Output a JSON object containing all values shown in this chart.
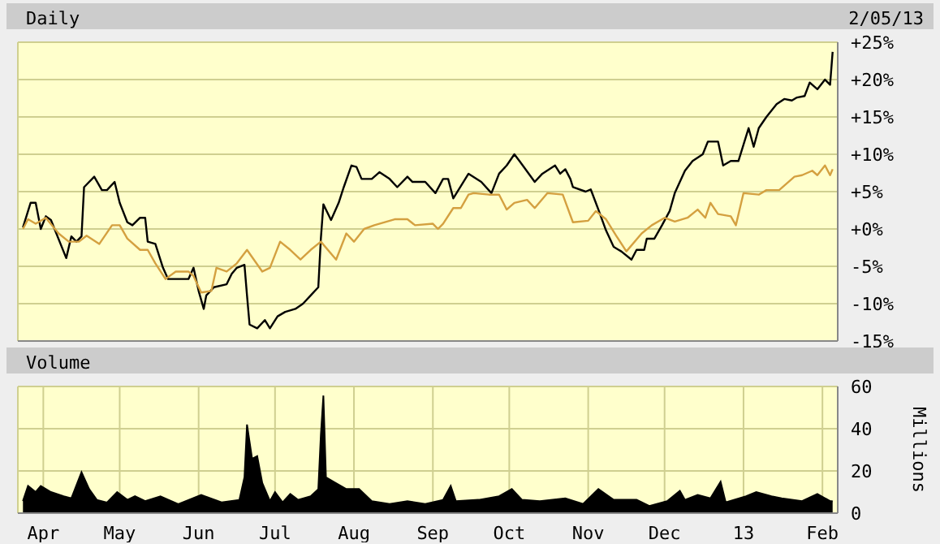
{
  "chart_data": [
    {
      "type": "line",
      "title": "Daily",
      "subtitle": "2/05/13",
      "xlim": [
        "2012-03-22",
        "2013-02-07"
      ],
      "xticks": [
        {
          "value": "2012-04-01",
          "label": null
        },
        {
          "value": "2012-05-01",
          "label": null
        },
        {
          "value": "2012-06-01",
          "label": null
        },
        {
          "value": "2012-07-01",
          "label": null
        },
        {
          "value": "2012-08-01",
          "label": null
        },
        {
          "value": "2012-09-01",
          "label": null
        },
        {
          "value": "2012-10-01",
          "label": null
        },
        {
          "value": "2012-11-01",
          "label": null
        },
        {
          "value": "2012-12-01",
          "label": null
        },
        {
          "value": "2013-01-01",
          "label": null
        },
        {
          "value": "2013-02-01",
          "label": null
        }
      ],
      "ylim": [
        -15,
        25
      ],
      "yticks": [
        {
          "value": -15,
          "label": "-15%"
        },
        {
          "value": -10,
          "label": "-10%"
        },
        {
          "value": -5,
          "label": "-5%"
        },
        {
          "value": 0,
          "label": "+0%"
        },
        {
          "value": 5,
          "label": "+5%"
        },
        {
          "value": 10,
          "label": "+10%"
        },
        {
          "value": 15,
          "label": "+15%"
        },
        {
          "value": 20,
          "label": "+20%"
        },
        {
          "value": 25,
          "label": "+25%"
        }
      ],
      "grid": true,
      "legend": false,
      "tick_labels": "y",
      "series": [
        {
          "color": "#000000",
          "x": [
            "2012-03-24",
            "2012-03-27",
            "2012-03-29",
            "2012-03-31",
            "2012-04-02",
            "2012-04-04",
            "2012-04-10",
            "2012-04-12",
            "2012-04-14",
            "2012-04-16",
            "2012-04-17",
            "2012-04-21",
            "2012-04-24",
            "2012-04-26",
            "2012-04-29",
            "2012-05-01",
            "2012-05-04",
            "2012-05-06",
            "2012-05-09",
            "2012-05-11",
            "2012-05-12",
            "2012-05-15",
            "2012-05-18",
            "2012-05-20",
            "2012-05-28",
            "2012-05-30",
            "2012-06-01",
            "2012-06-03",
            "2012-06-04",
            "2012-06-07",
            "2012-06-12",
            "2012-06-14",
            "2012-06-16",
            "2012-06-19",
            "2012-06-20",
            "2012-06-21",
            "2012-06-24",
            "2012-06-27",
            "2012-06-29",
            "2012-07-02",
            "2012-07-05",
            "2012-07-09",
            "2012-07-12",
            "2012-07-15",
            "2012-07-18",
            "2012-07-19",
            "2012-07-20",
            "2012-07-23",
            "2012-07-26",
            "2012-07-28",
            "2012-07-31",
            "2012-08-02",
            "2012-08-04",
            "2012-08-08",
            "2012-08-11",
            "2012-08-15",
            "2012-08-18",
            "2012-08-22",
            "2012-08-24",
            "2012-08-29",
            "2012-09-02",
            "2012-09-05",
            "2012-09-07",
            "2012-09-09",
            "2012-09-15",
            "2012-09-20",
            "2012-09-24",
            "2012-09-27",
            "2012-09-30",
            "2012-10-03",
            "2012-10-05",
            "2012-10-11",
            "2012-10-14",
            "2012-10-19",
            "2012-10-21",
            "2012-10-23",
            "2012-10-25",
            "2012-10-26",
            "2012-10-31",
            "2012-11-02",
            "2012-11-05",
            "2012-11-08",
            "2012-11-11",
            "2012-11-14",
            "2012-11-18",
            "2012-11-20",
            "2012-11-23",
            "2012-11-24",
            "2012-11-27",
            "2012-11-30",
            "2012-12-03",
            "2012-12-05",
            "2012-12-09",
            "2012-12-12",
            "2012-12-16",
            "2012-12-18",
            "2012-12-22",
            "2012-12-24",
            "2012-12-27",
            "2012-12-30",
            "2013-01-03",
            "2013-01-05",
            "2013-01-07",
            "2013-01-10",
            "2013-01-14",
            "2013-01-17",
            "2013-01-20",
            "2013-01-22",
            "2013-01-25",
            "2013-01-27",
            "2013-01-30",
            "2013-02-02",
            "2013-02-04",
            "2013-02-05"
          ],
          "values": [
            0.2,
            3.5,
            3.5,
            0,
            1.7,
            1.2,
            -3.9,
            -1,
            -1.7,
            -1,
            5.6,
            7,
            5.2,
            5.2,
            6.3,
            3.5,
            0.9,
            0.5,
            1.5,
            1.5,
            -1.7,
            -2,
            -5.2,
            -6.7,
            -6.7,
            -5.2,
            -8.3,
            -10.7,
            -8.9,
            -7.8,
            -7.4,
            -6,
            -5.2,
            -4.8,
            -8.9,
            -12.8,
            -13.3,
            -12.2,
            -13.3,
            -11.7,
            -11.1,
            -10.7,
            -10,
            -8.9,
            -7.8,
            -1.3,
            3.3,
            1.2,
            3.5,
            5.6,
            8.5,
            8.3,
            6.7,
            6.7,
            7.6,
            6.7,
            5.6,
            7,
            6.3,
            6.3,
            4.8,
            6.7,
            6.7,
            4.1,
            7.4,
            6.3,
            4.8,
            7.4,
            8.5,
            10,
            9.1,
            6.3,
            7.4,
            8.5,
            7.4,
            8,
            6.7,
            5.6,
            5,
            5.3,
            2.6,
            -0.2,
            -2.4,
            -3,
            -4.1,
            -2.8,
            -2.8,
            -1.3,
            -1.3,
            0.5,
            2.4,
            4.8,
            7.8,
            9.1,
            10,
            11.7,
            11.7,
            8.5,
            9.1,
            9.1,
            13.5,
            11,
            13.5,
            15,
            16.7,
            17.4,
            17.2,
            17.6,
            17.8,
            19.6,
            18.7,
            20,
            19.3,
            23.7
          ]
        },
        {
          "color": "#d4a040",
          "x": [
            "2012-03-24",
            "2012-03-26",
            "2012-03-29",
            "2012-04-02",
            "2012-04-07",
            "2012-04-11",
            "2012-04-15",
            "2012-04-18",
            "2012-04-23",
            "2012-04-28",
            "2012-05-01",
            "2012-05-04",
            "2012-05-09",
            "2012-05-12",
            "2012-05-15",
            "2012-05-19",
            "2012-05-23",
            "2012-05-28",
            "2012-05-30",
            "2012-06-02",
            "2012-06-06",
            "2012-06-08",
            "2012-06-12",
            "2012-06-16",
            "2012-06-20",
            "2012-06-26",
            "2012-06-29",
            "2012-07-03",
            "2012-07-07",
            "2012-07-11",
            "2012-07-15",
            "2012-07-19",
            "2012-07-25",
            "2012-07-29",
            "2012-08-01",
            "2012-08-05",
            "2012-08-09",
            "2012-08-17",
            "2012-08-22",
            "2012-08-25",
            "2012-09-01",
            "2012-09-03",
            "2012-09-05",
            "2012-09-09",
            "2012-09-12",
            "2012-09-15",
            "2012-09-17",
            "2012-09-23",
            "2012-09-27",
            "2012-09-30",
            "2012-10-03",
            "2012-10-08",
            "2012-10-11",
            "2012-10-16",
            "2012-10-22",
            "2012-10-26",
            "2012-11-01",
            "2012-11-04",
            "2012-11-08",
            "2012-11-12",
            "2012-11-16",
            "2012-11-22",
            "2012-11-26",
            "2012-12-01",
            "2012-12-05",
            "2012-12-10",
            "2012-12-14",
            "2012-12-17",
            "2012-12-19",
            "2012-12-22",
            "2012-12-27",
            "2012-12-29",
            "2013-01-01",
            "2013-01-07",
            "2013-01-10",
            "2013-01-15",
            "2013-01-21",
            "2013-01-24",
            "2013-01-28",
            "2013-01-30",
            "2013-02-02",
            "2013-02-04",
            "2013-02-05"
          ],
          "values": [
            0,
            1.3,
            0.7,
            1.5,
            -0.6,
            -1.7,
            -1.7,
            -0.9,
            -2,
            0.5,
            0.5,
            -1.3,
            -2.8,
            -2.8,
            -4.6,
            -6.7,
            -5.7,
            -5.7,
            -6.3,
            -8.5,
            -8.3,
            -5.2,
            -5.7,
            -4.6,
            -2.8,
            -5.7,
            -5.2,
            -1.7,
            -2.8,
            -4.1,
            -2.8,
            -1.7,
            -4.1,
            -0.6,
            -1.7,
            0,
            0.5,
            1.3,
            1.3,
            0.5,
            0.7,
            0,
            0.7,
            2.8,
            2.8,
            4.6,
            4.8,
            4.6,
            4.6,
            2.6,
            3.5,
            3.9,
            2.8,
            4.8,
            4.6,
            0.9,
            1.1,
            2.4,
            1.3,
            -0.9,
            -3,
            -0.6,
            0.5,
            1.5,
            1,
            1.5,
            2.6,
            1.5,
            3.5,
            2,
            1.7,
            0.5,
            4.8,
            4.6,
            5.2,
            5.2,
            7,
            7.2,
            7.8,
            7.2,
            8.5,
            7.2,
            8
          ]
        }
      ]
    },
    {
      "type": "area",
      "title": "Volume",
      "ylabel": "Millions",
      "xlim": [
        "2012-03-22",
        "2013-02-07"
      ],
      "xticks": [
        {
          "value": "2012-04-01",
          "label": "Apr"
        },
        {
          "value": "2012-05-01",
          "label": "May"
        },
        {
          "value": "2012-06-01",
          "label": "Jun"
        },
        {
          "value": "2012-07-01",
          "label": "Jul"
        },
        {
          "value": "2012-08-01",
          "label": "Aug"
        },
        {
          "value": "2012-09-01",
          "label": "Sep"
        },
        {
          "value": "2012-10-01",
          "label": "Oct"
        },
        {
          "value": "2012-11-01",
          "label": "Nov"
        },
        {
          "value": "2012-12-01",
          "label": "Dec"
        },
        {
          "value": "2013-01-01",
          "label": "13"
        },
        {
          "value": "2013-02-01",
          "label": "Feb"
        }
      ],
      "ylim": [
        0,
        60
      ],
      "yticks": [
        0,
        20,
        40,
        60
      ],
      "grid": true,
      "legend": false,
      "series": [
        {
          "color": "#000000",
          "x": [
            "2012-03-24",
            "2012-03-26",
            "2012-03-29",
            "2012-03-31",
            "2012-04-04",
            "2012-04-09",
            "2012-04-12",
            "2012-04-16",
            "2012-04-19",
            "2012-04-22",
            "2012-04-26",
            "2012-04-30",
            "2012-05-04",
            "2012-05-07",
            "2012-05-11",
            "2012-05-17",
            "2012-05-24",
            "2012-06-02",
            "2012-06-10",
            "2012-06-17",
            "2012-06-19",
            "2012-06-20",
            "2012-06-22",
            "2012-06-24",
            "2012-06-26",
            "2012-06-29",
            "2012-07-01",
            "2012-07-04",
            "2012-07-07",
            "2012-07-10",
            "2012-07-15",
            "2012-07-18",
            "2012-07-19",
            "2012-07-20",
            "2012-07-21",
            "2012-07-24",
            "2012-07-29",
            "2012-08-03",
            "2012-08-08",
            "2012-08-15",
            "2012-08-22",
            "2012-08-29",
            "2012-09-05",
            "2012-09-08",
            "2012-09-10",
            "2012-09-19",
            "2012-09-27",
            "2012-10-02",
            "2012-10-06",
            "2012-10-13",
            "2012-10-23",
            "2012-10-30",
            "2012-11-05",
            "2012-11-11",
            "2012-11-20",
            "2012-11-25",
            "2012-12-02",
            "2012-12-07",
            "2012-12-09",
            "2012-12-14",
            "2012-12-19",
            "2012-12-23",
            "2012-12-25",
            "2013-01-02",
            "2013-01-06",
            "2013-01-12",
            "2013-01-16",
            "2013-01-24",
            "2013-01-30",
            "2013-02-04",
            "2013-02-05"
          ],
          "values": [
            5.7,
            12.9,
            10,
            12.9,
            10,
            8,
            7,
            19.4,
            11.4,
            6.3,
            5,
            10,
            6.3,
            8,
            5.7,
            8,
            4.3,
            8.6,
            5.1,
            6.3,
            17,
            42,
            25.7,
            27,
            14.3,
            5.7,
            10,
            5.1,
            9.1,
            6.3,
            8,
            11.4,
            37,
            55.7,
            17,
            14.9,
            11.4,
            11.4,
            5.7,
            4.3,
            5.7,
            4.3,
            6.3,
            12.9,
            5.7,
            6.3,
            8,
            11.4,
            6.3,
            5.7,
            7,
            4.3,
            11.4,
            6.3,
            6.3,
            3.4,
            5.7,
            10.6,
            6.3,
            8.6,
            7,
            14.9,
            5.1,
            8,
            10,
            8,
            7,
            5.7,
            9.1,
            5.7,
            5.7
          ]
        }
      ]
    }
  ]
}
